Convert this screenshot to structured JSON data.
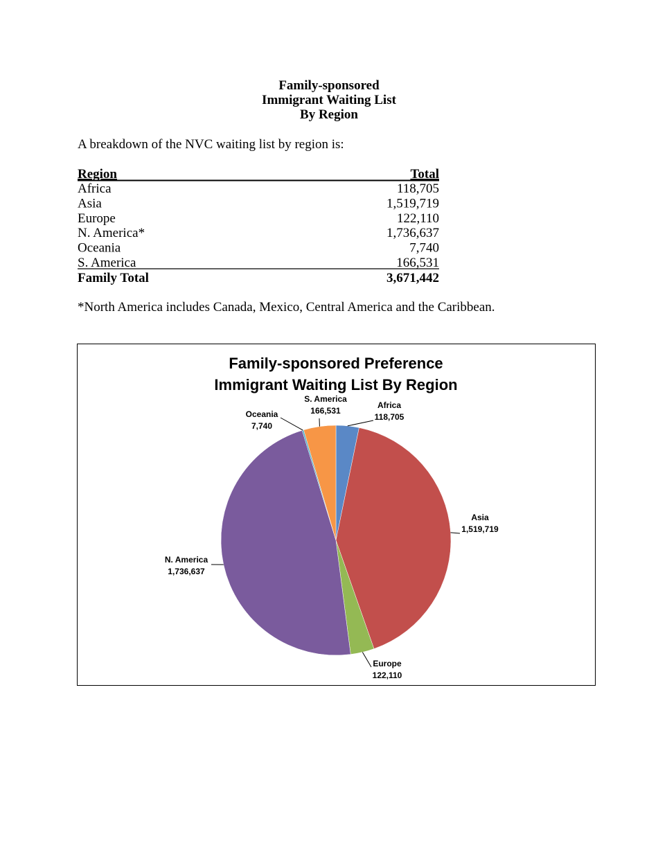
{
  "header": {
    "title": [
      "Family-sponsored",
      "Immigrant Waiting List",
      "By Region"
    ]
  },
  "intro": "A breakdown of the NVC waiting list by region is:",
  "table": {
    "header": [
      "Region",
      "Total"
    ],
    "rows": [
      [
        "Africa",
        "118,705"
      ],
      [
        "Asia",
        "1,519,719"
      ],
      [
        "Europe",
        "122,110"
      ],
      [
        "N. America*",
        "1,736,637"
      ],
      [
        "Oceania",
        "7,740"
      ],
      [
        "S. America",
        "166,531"
      ]
    ],
    "total": [
      "Family Total",
      "3,671,442"
    ]
  },
  "footnote": "*North America includes Canada, Mexico, Central America and the Caribbean.",
  "chart_data": {
    "type": "pie",
    "title": [
      "Family-sponsored Preference",
      "Immigrant Waiting List By Region"
    ],
    "categories": [
      "Africa",
      "Asia",
      "Europe",
      "N. America",
      "Oceania",
      "S. America"
    ],
    "values": [
      118705,
      1519719,
      122110,
      1736637,
      7740,
      166531
    ],
    "value_labels": [
      "118,705",
      "1,519,719",
      "122,110",
      "1,736,637",
      "7,740",
      "166,531"
    ],
    "colors": [
      "#5a88c6",
      "#c24f4c",
      "#94b954",
      "#7a5b9d",
      "#4bacc6",
      "#f79646"
    ]
  }
}
